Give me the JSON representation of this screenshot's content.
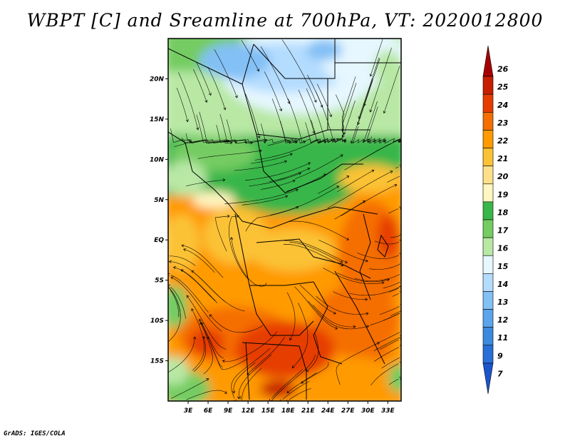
{
  "title": "WBPT [C] and Sreamline at 700hPa, VT: 2020012800",
  "credit": "GrADS: IGES/COLA",
  "map": {
    "lat_labels": [
      "20N",
      "15N",
      "10N",
      "5N",
      "EQ",
      "5S",
      "10S",
      "15S"
    ],
    "lat_values": [
      20,
      15,
      10,
      5,
      0,
      -5,
      -10,
      -15
    ],
    "lon_labels": [
      "3E",
      "6E",
      "9E",
      "12E",
      "15E",
      "18E",
      "21E",
      "24E",
      "27E",
      "30E",
      "33E"
    ],
    "lon_values": [
      3,
      6,
      9,
      12,
      15,
      18,
      21,
      24,
      27,
      30,
      33
    ],
    "lon_range": [
      0,
      35
    ],
    "lat_range": [
      -20,
      25
    ]
  },
  "colorbar": {
    "labels": [
      "26",
      "25",
      "24",
      "23",
      "22",
      "21",
      "20",
      "19",
      "18",
      "17",
      "16",
      "15",
      "14",
      "13",
      "12",
      "11",
      "9",
      "7"
    ],
    "colors": [
      "#a50000",
      "#c81e00",
      "#e63c00",
      "#f56e00",
      "#ff9a00",
      "#fbc235",
      "#ffe08a",
      "#fff6c0",
      "#39b64a",
      "#74cc62",
      "#b8e8a4",
      "#e6f7ff",
      "#b4dcff",
      "#82c0f5",
      "#5aa5eb",
      "#3c8ae0",
      "#2870d8",
      "#1a55cc"
    ]
  }
}
